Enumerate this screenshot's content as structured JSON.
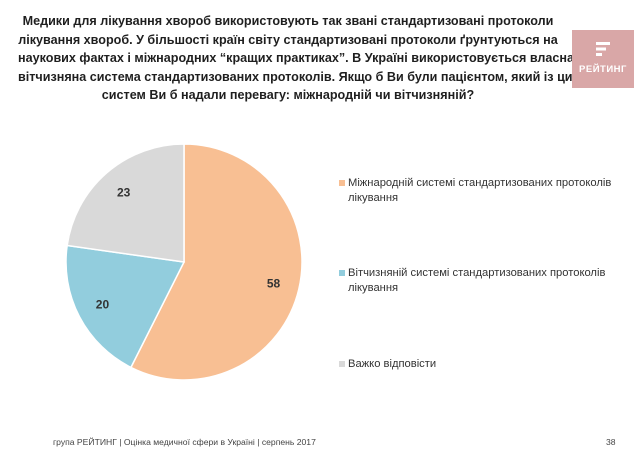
{
  "title_lines": [
    "Медики для лікування хвороб використовують так звані стандартизовані протоколи",
    "лікування хвороб. У більшості країн світу стандартизовані протоколи ґрунтуються на",
    "наукових фактах і міжнародних “кращих практиках”. В Україні використовується власна",
    "вітчизняна система стандартизованих протоколів. Якщо б Ви були пацієнтом, який із цих",
    "систем Ви б надали перевагу: міжнародній чи вітчизняній?"
  ],
  "logo": {
    "text": "РЕЙТИНГ",
    "color": "#d9a7a7"
  },
  "chart_data": {
    "type": "pie",
    "title": "",
    "slices": [
      {
        "label": "Міжнародній системі стандартизованих протоколів лікування",
        "value": 58,
        "color": "#f8bf93"
      },
      {
        "label": "Вітчизняній системі стандартизованих протоколів лікування",
        "value": 20,
        "color": "#92cddd"
      },
      {
        "label": "Важко відповісти",
        "value": 23,
        "color": "#d9d9d9"
      }
    ],
    "start_angle": "12 o'clock",
    "direction": "clockwise",
    "legend_position": "right"
  },
  "footer": {
    "text": "група РЕЙТИНГ  |  Оцінка медичної сфери в Україні  |  серпень 2017",
    "page_number": "38"
  }
}
